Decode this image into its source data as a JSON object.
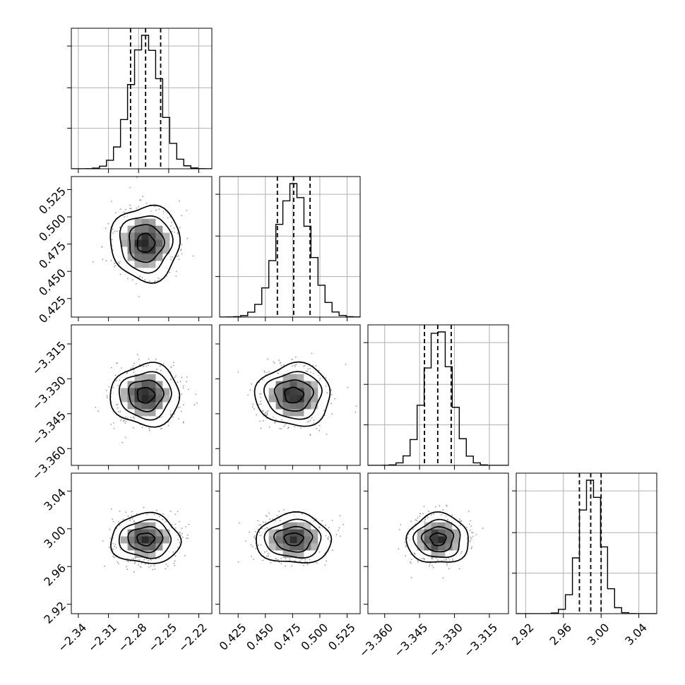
{
  "chart_data": {
    "type": "corner",
    "parameters": [
      {
        "mean": -2.273,
        "sigma": 0.015,
        "quantiles": [
          -2.288,
          -2.273,
          -2.258
        ],
        "range": [
          -2.347,
          -2.207
        ],
        "ticks": [
          -2.34,
          -2.31,
          -2.28,
          -2.25,
          -2.22
        ],
        "tick_labels": [
          "−2.34",
          "−2.31",
          "−2.28",
          "−2.25",
          "−2.22"
        ]
      },
      {
        "mean": 0.476,
        "sigma": 0.015,
        "quantiles": [
          0.461,
          0.476,
          0.491
        ],
        "range": [
          0.408,
          0.537
        ],
        "ticks": [
          0.425,
          0.45,
          0.475,
          0.5,
          0.525
        ],
        "tick_labels": [
          "0.425",
          "0.450",
          "0.475",
          "0.500",
          "0.525"
        ]
      },
      {
        "mean": -3.337,
        "sigma": 0.0058,
        "quantiles": [
          -3.3429,
          -3.3372,
          -3.3314
        ],
        "range": [
          -3.3672,
          -3.3068
        ],
        "ticks": [
          -3.36,
          -3.345,
          -3.33,
          -3.315
        ],
        "tick_labels": [
          "−3.360",
          "−3.345",
          "−3.330",
          "−3.315"
        ]
      },
      {
        "mean": 2.989,
        "sigma": 0.0115,
        "quantiles": [
          2.977,
          2.989,
          3.0
        ],
        "range": [
          2.91,
          3.059
        ],
        "ticks": [
          2.92,
          2.96,
          3.0,
          3.04
        ],
        "tick_labels": [
          "2.92",
          "2.96",
          "3.00",
          "3.04"
        ]
      }
    ],
    "histogram_bins": 20,
    "contour_levels_sigma": [
      0.5,
      1.0,
      1.5,
      2.0
    ],
    "grid": true,
    "colors": {
      "line": "#000000",
      "scatter": "#9a9a9a",
      "grid": "#b0b0b0"
    }
  }
}
